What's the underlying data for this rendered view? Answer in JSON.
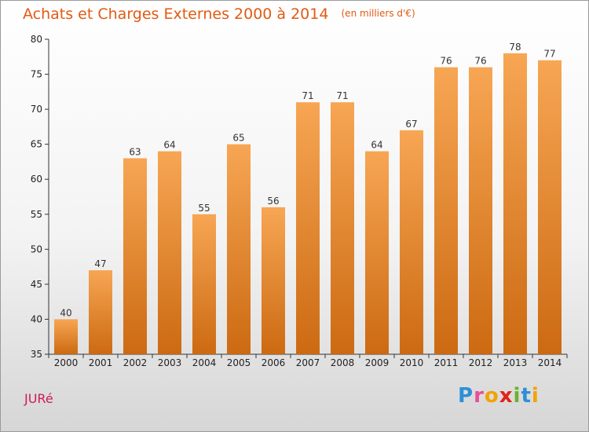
{
  "header": {
    "title": "Achats et Charges Externes 2000 à 2014",
    "unit": "(en milliers d'€)"
  },
  "commune": "JURé",
  "logo": {
    "text": "Proxiti",
    "letters": [
      {
        "ch": "P",
        "color": "#2e8fd8"
      },
      {
        "ch": "r",
        "color": "#e84d9a"
      },
      {
        "ch": "o",
        "color": "#f2a300"
      },
      {
        "ch": "x",
        "color": "#e2231a"
      },
      {
        "ch": "i",
        "color": "#6bb22e"
      },
      {
        "ch": "t",
        "color": "#2e8fd8"
      },
      {
        "ch": "i",
        "color": "#f2a300"
      }
    ]
  },
  "colors": {
    "title": "#e25a12",
    "commune": "#cc1b56",
    "bar_top": "#f7a654",
    "bar_bottom": "#cc6a12"
  },
  "chart_data": {
    "type": "bar",
    "title": "Achats et Charges Externes 2000 à 2014",
    "subtitle": "(en milliers d'€)",
    "xlabel": "",
    "ylabel": "",
    "categories": [
      "2000",
      "2001",
      "2002",
      "2003",
      "2004",
      "2005",
      "2006",
      "2007",
      "2008",
      "2009",
      "2010",
      "2011",
      "2012",
      "2013",
      "2014"
    ],
    "values": [
      40,
      47,
      63,
      64,
      55,
      65,
      56,
      71,
      71,
      64,
      67,
      76,
      76,
      78,
      77
    ],
    "ylim": [
      35,
      80
    ],
    "yticks": [
      35,
      40,
      45,
      50,
      55,
      60,
      65,
      70,
      75,
      80
    ],
    "grid": false,
    "data_labels": true
  }
}
